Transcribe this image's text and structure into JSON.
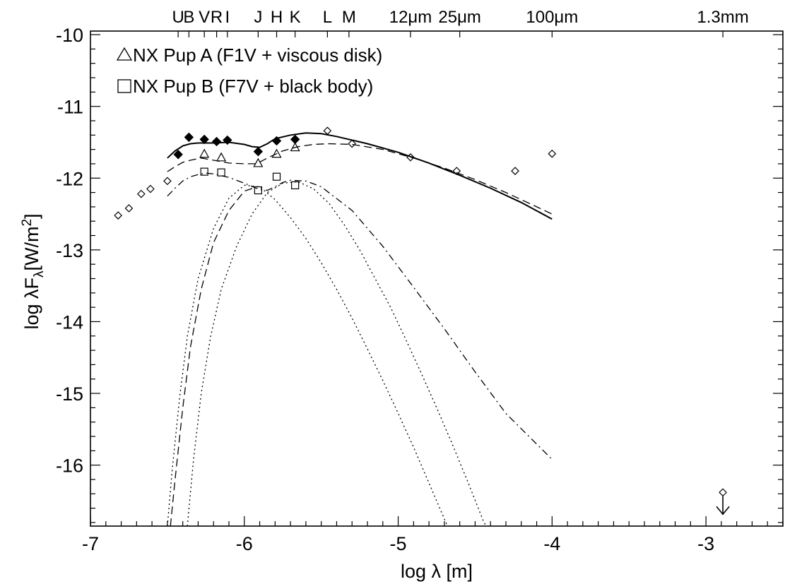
{
  "chart_data": {
    "type": "scatter",
    "xlabel": "log λ [m]",
    "ylabel": "log λF",
    "ylabel_sub": "λ",
    "ylabel_unit": "[W/m",
    "ylabel_sup": "2",
    "ylabel_close": "]",
    "xlim": [
      -7,
      -2.5
    ],
    "ylim": [
      -16.85,
      -9.95
    ],
    "x_ticks": [
      -7,
      -6,
      -5,
      -4,
      -3
    ],
    "x_tick_labels": [
      "-7",
      "-6",
      "-5",
      "-4",
      "-3"
    ],
    "y_ticks": [
      -10,
      -11,
      -12,
      -13,
      -14,
      -15,
      -16
    ],
    "y_tick_labels": [
      "-10",
      "-11",
      "-12",
      "-13",
      "-14",
      "-15",
      "-16"
    ],
    "top_axis_bands": [
      {
        "label": "U",
        "x": -6.43
      },
      {
        "label": "B",
        "x": -6.36
      },
      {
        "label": "V",
        "x": -6.26
      },
      {
        "label": "R",
        "x": -6.18
      },
      {
        "label": "I",
        "x": -6.11
      },
      {
        "label": "J",
        "x": -5.91
      },
      {
        "label": "H",
        "x": -5.79
      },
      {
        "label": "K",
        "x": -5.67
      },
      {
        "label": "L",
        "x": -5.46
      },
      {
        "label": "M",
        "x": -5.32
      },
      {
        "label": "12μm",
        "x": -4.92
      },
      {
        "label": "25μm",
        "x": -4.6
      },
      {
        "label": "100μm",
        "x": -4.0
      },
      {
        "label": "1.3mm",
        "x": -2.89
      }
    ],
    "legend": [
      {
        "marker": "triangle",
        "label": "NX Pup A (F1V + viscous disk)"
      },
      {
        "marker": "square",
        "label": "NX Pup B (F7V + black body)"
      }
    ],
    "series": [
      {
        "marker": "filled-diamond",
        "points": [
          [
            -6.43,
            -11.67
          ],
          [
            -6.36,
            -11.43
          ],
          [
            -6.26,
            -11.46
          ],
          [
            -6.18,
            -11.49
          ],
          [
            -6.11,
            -11.47
          ],
          [
            -5.91,
            -11.63
          ],
          [
            -5.79,
            -11.48
          ],
          [
            -5.67,
            -11.46
          ]
        ]
      },
      {
        "name": "NX Pup A (F1V + viscous disk)",
        "marker": "triangle",
        "points": [
          [
            -6.26,
            -11.66
          ],
          [
            -6.15,
            -11.71
          ],
          [
            -5.91,
            -11.79
          ],
          [
            -5.79,
            -11.66
          ],
          [
            -5.67,
            -11.57
          ]
        ]
      },
      {
        "name": "NX Pup B (F7V + black body)",
        "marker": "square",
        "points": [
          [
            -6.26,
            -11.91
          ],
          [
            -6.15,
            -11.92
          ],
          [
            -5.91,
            -12.17
          ],
          [
            -5.79,
            -11.98
          ],
          [
            -5.67,
            -12.1
          ]
        ]
      },
      {
        "marker": "open-diamond",
        "points": [
          [
            -6.82,
            -12.52
          ],
          [
            -6.75,
            -12.42
          ],
          [
            -6.67,
            -12.22
          ],
          [
            -6.61,
            -12.15
          ],
          [
            -6.5,
            -12.04
          ],
          [
            -5.46,
            -11.34
          ],
          [
            -5.3,
            -11.52
          ],
          [
            -4.92,
            -11.71
          ],
          [
            -4.62,
            -11.9
          ],
          [
            -4.24,
            -11.9
          ],
          [
            -4.0,
            -11.66
          ]
        ]
      },
      {
        "marker": "open-diamond-upper-limit",
        "points": [
          [
            -2.89,
            -16.38
          ]
        ]
      }
    ],
    "model_curves": [
      {
        "style": "solid",
        "points": [
          [
            -6.5,
            -11.72
          ],
          [
            -6.45,
            -11.62
          ],
          [
            -6.4,
            -11.55
          ],
          [
            -6.35,
            -11.52
          ],
          [
            -6.3,
            -11.51
          ],
          [
            -6.2,
            -11.51
          ],
          [
            -6.1,
            -11.5
          ],
          [
            -6.0,
            -11.53
          ],
          [
            -5.95,
            -11.56
          ],
          [
            -5.9,
            -11.57
          ],
          [
            -5.85,
            -11.52
          ],
          [
            -5.8,
            -11.45
          ],
          [
            -5.7,
            -11.4
          ],
          [
            -5.6,
            -11.37
          ],
          [
            -5.5,
            -11.38
          ],
          [
            -5.4,
            -11.42
          ],
          [
            -5.2,
            -11.52
          ],
          [
            -5.0,
            -11.64
          ],
          [
            -4.8,
            -11.79
          ],
          [
            -4.6,
            -11.96
          ],
          [
            -4.4,
            -12.14
          ],
          [
            -4.2,
            -12.34
          ],
          [
            -4.0,
            -12.57
          ]
        ]
      },
      {
        "style": "dashed",
        "points": [
          [
            -6.5,
            -11.91
          ],
          [
            -6.45,
            -11.84
          ],
          [
            -6.4,
            -11.78
          ],
          [
            -6.35,
            -11.75
          ],
          [
            -6.28,
            -11.72
          ],
          [
            -6.2,
            -11.75
          ],
          [
            -6.1,
            -11.79
          ],
          [
            -6.0,
            -11.8
          ],
          [
            -5.92,
            -11.8
          ],
          [
            -5.85,
            -11.72
          ],
          [
            -5.75,
            -11.62
          ],
          [
            -5.65,
            -11.56
          ],
          [
            -5.55,
            -11.53
          ],
          [
            -5.45,
            -11.52
          ],
          [
            -5.3,
            -11.53
          ],
          [
            -5.1,
            -11.6
          ],
          [
            -4.9,
            -11.72
          ],
          [
            -4.7,
            -11.86
          ],
          [
            -4.5,
            -12.02
          ],
          [
            -4.3,
            -12.2
          ],
          [
            -4.1,
            -12.4
          ],
          [
            -4.0,
            -12.5
          ]
        ]
      },
      {
        "style": "dash-dot",
        "points": [
          [
            -6.5,
            -12.25
          ],
          [
            -6.45,
            -12.14
          ],
          [
            -6.4,
            -12.04
          ],
          [
            -6.35,
            -11.98
          ],
          [
            -6.3,
            -11.95
          ],
          [
            -6.25,
            -11.93
          ],
          [
            -6.2,
            -11.94
          ],
          [
            -6.1,
            -11.99
          ],
          [
            -6.0,
            -12.07
          ],
          [
            -5.9,
            -12.16
          ],
          [
            -5.85,
            -12.17
          ],
          [
            -5.8,
            -12.12
          ],
          [
            -5.75,
            -12.06
          ],
          [
            -5.7,
            -12.03
          ],
          [
            -5.6,
            -12.04
          ],
          [
            -5.5,
            -12.12
          ],
          [
            -5.3,
            -12.45
          ],
          [
            -5.1,
            -12.95
          ],
          [
            -4.9,
            -13.52
          ],
          [
            -4.7,
            -14.1
          ],
          [
            -4.5,
            -14.7
          ],
          [
            -4.3,
            -15.28
          ],
          [
            -4.0,
            -15.92
          ]
        ]
      },
      {
        "style": "dotted",
        "points": [
          [
            -6.5,
            -16.85
          ],
          [
            -6.47,
            -16.1
          ],
          [
            -6.42,
            -15.05
          ],
          [
            -6.37,
            -14.2
          ],
          [
            -6.3,
            -13.4
          ],
          [
            -6.2,
            -12.7
          ],
          [
            -6.1,
            -12.28
          ],
          [
            -6.0,
            -12.1
          ],
          [
            -5.9,
            -12.12
          ],
          [
            -5.8,
            -12.3
          ],
          [
            -5.7,
            -12.55
          ],
          [
            -5.6,
            -12.84
          ],
          [
            -5.5,
            -13.18
          ],
          [
            -5.4,
            -13.55
          ],
          [
            -5.3,
            -13.95
          ],
          [
            -5.2,
            -14.38
          ],
          [
            -5.1,
            -14.82
          ],
          [
            -5.0,
            -15.28
          ],
          [
            -4.9,
            -15.75
          ],
          [
            -4.8,
            -16.25
          ],
          [
            -4.7,
            -16.75
          ],
          [
            -4.68,
            -16.85
          ]
        ]
      },
      {
        "style": "dotted",
        "points": [
          [
            -6.37,
            -16.85
          ],
          [
            -6.33,
            -15.92
          ],
          [
            -6.28,
            -15.0
          ],
          [
            -6.22,
            -14.22
          ],
          [
            -6.15,
            -13.55
          ],
          [
            -6.05,
            -12.95
          ],
          [
            -5.95,
            -12.5
          ],
          [
            -5.85,
            -12.2
          ],
          [
            -5.75,
            -12.07
          ],
          [
            -5.65,
            -12.05
          ],
          [
            -5.55,
            -12.15
          ],
          [
            -5.45,
            -12.35
          ],
          [
            -5.35,
            -12.65
          ],
          [
            -5.25,
            -13.0
          ],
          [
            -5.15,
            -13.4
          ],
          [
            -5.05,
            -13.8
          ],
          [
            -4.95,
            -14.25
          ],
          [
            -4.85,
            -14.72
          ],
          [
            -4.75,
            -15.2
          ],
          [
            -4.65,
            -15.7
          ],
          [
            -4.55,
            -16.22
          ],
          [
            -4.45,
            -16.76
          ],
          [
            -4.43,
            -16.85
          ]
        ]
      },
      {
        "style": "dashed",
        "points": [
          [
            -6.48,
            -16.85
          ],
          [
            -6.45,
            -16.2
          ],
          [
            -6.4,
            -15.2
          ],
          [
            -6.35,
            -14.35
          ],
          [
            -6.28,
            -13.55
          ],
          [
            -6.2,
            -12.9
          ],
          [
            -6.1,
            -12.45
          ],
          [
            -6.0,
            -12.18
          ],
          [
            -5.93,
            -12.13
          ]
        ]
      }
    ]
  }
}
